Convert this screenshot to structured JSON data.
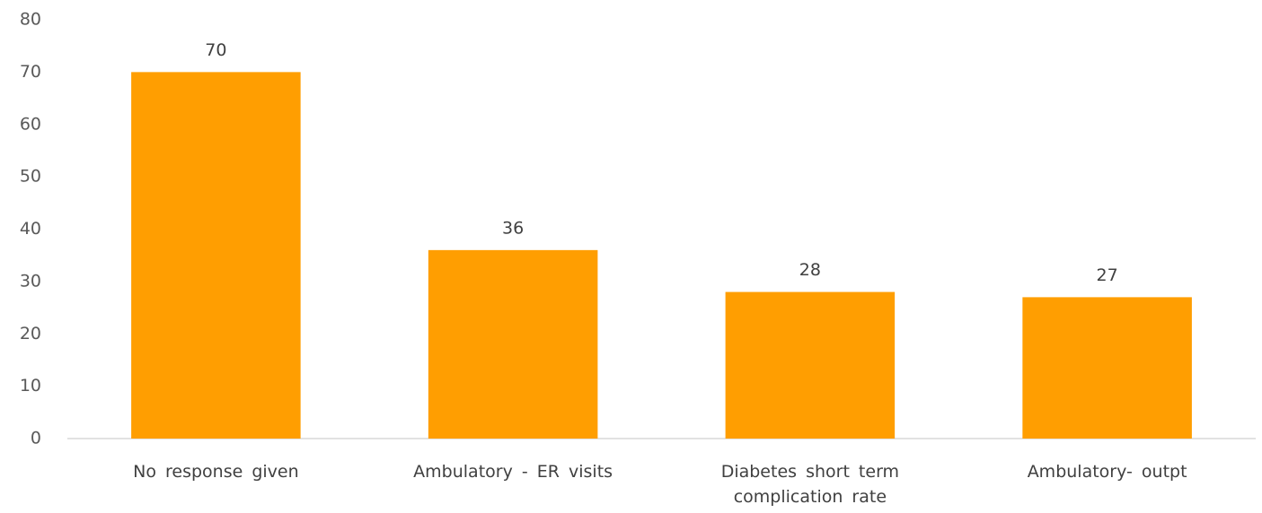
{
  "chart_data": {
    "type": "bar",
    "categories": [
      "No response given",
      "Ambulatory - ER visits",
      "Diabetes short term complication rate",
      "Ambulatory- outpt"
    ],
    "values": [
      70,
      36,
      28,
      27
    ],
    "color": "#ff9e01",
    "ylim": [
      0,
      80
    ],
    "yticks": [
      0,
      10,
      20,
      30,
      40,
      50,
      60,
      70,
      80
    ],
    "grid": false,
    "data_labels": true
  }
}
